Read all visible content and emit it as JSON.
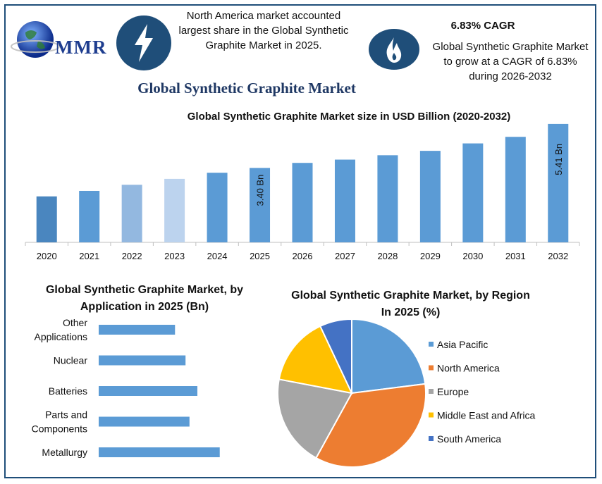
{
  "header": {
    "logo_text": "MMR",
    "note_left": "North America market accounted largest share in the Global Synthetic Graphite Market in 2025.",
    "cagr_title": "6.83% CAGR",
    "note_right": "Global Synthetic Graphite Market to grow at a CAGR of 6.83% during 2026-2032",
    "main_title": "Global Synthetic Graphite Market"
  },
  "icons": {
    "left": "lightning-icon",
    "right": "flame-icon",
    "logo": "globe-icon"
  },
  "colors": {
    "accent": "#1f4e79",
    "bar": "#5b9bd5",
    "title": "#1f3864"
  },
  "chart_data": [
    {
      "type": "bar",
      "title": "Global Synthetic Graphite Market size in USD Billion (2020-2032)",
      "categories": [
        "2020",
        "2021",
        "2022",
        "2023",
        "2024",
        "2025",
        "2026",
        "2027",
        "2028",
        "2029",
        "2030",
        "2031",
        "2032"
      ],
      "values": [
        2.1,
        2.35,
        2.63,
        2.9,
        3.18,
        3.4,
        3.63,
        3.78,
        3.98,
        4.18,
        4.52,
        4.82,
        5.41
      ],
      "bar_colors": [
        "#4a86bf",
        "#5b9bd5",
        "#93b8e0",
        "#bcd3ee",
        "#5b9bd5",
        "#5b9bd5",
        "#5b9bd5",
        "#5b9bd5",
        "#5b9bd5",
        "#5b9bd5",
        "#5b9bd5",
        "#5b9bd5",
        "#5b9bd5"
      ],
      "data_labels": [
        {
          "category": "2025",
          "text": "3.40 Bn"
        },
        {
          "category": "2032",
          "text": "5.41 Bn"
        }
      ],
      "ylim": [
        0,
        5.6
      ]
    },
    {
      "type": "bar",
      "orientation": "horizontal",
      "title": "Global Synthetic Graphite Market, by Application in 2025 (Bn)",
      "categories": [
        "Other Applications",
        "Nuclear",
        "Batteries",
        "Parts and Components",
        "Metallurgy"
      ],
      "label_lines": [
        [
          "Other",
          "Applications"
        ],
        [
          "Nuclear"
        ],
        [
          "Batteries"
        ],
        [
          "Parts and",
          "Components"
        ],
        [
          "Metallurgy"
        ]
      ],
      "values": [
        0.58,
        0.66,
        0.75,
        0.69,
        0.92
      ],
      "xlim": [
        0,
        1.5
      ],
      "color": "#5b9bd5"
    },
    {
      "type": "pie",
      "title": "Global Synthetic Graphite Market, by Region In 2025 (%)",
      "labels": [
        "Asia Pacific",
        "North America",
        "Europe",
        "Middle East and Africa",
        "South America"
      ],
      "values": [
        23,
        35,
        20,
        15,
        7
      ],
      "colors": [
        "#5b9bd5",
        "#ed7d31",
        "#a5a5a5",
        "#ffc000",
        "#4472c4"
      ],
      "legend": "right"
    }
  ]
}
